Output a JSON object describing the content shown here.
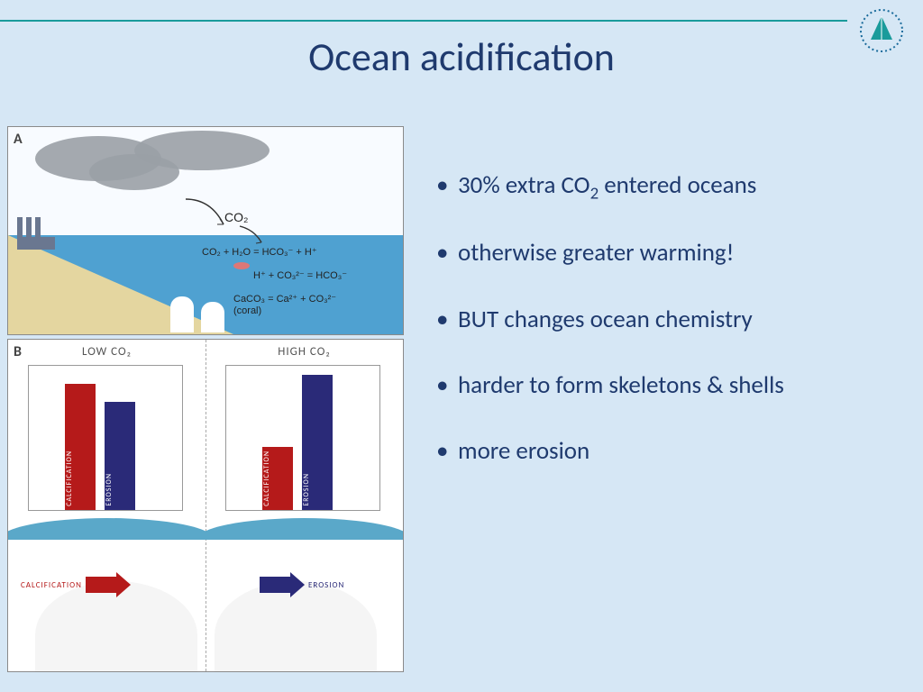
{
  "title": "Ocean acidification",
  "logo": {
    "ring_color": "#1a6b9b",
    "sail_color": "#1a9b9b"
  },
  "colors": {
    "background": "#d6e7f5",
    "title_text": "#1f3a6e",
    "bullet_text": "#1f3a6e",
    "top_rule": "#1a9b9b",
    "panel_border": "#8a8a8a"
  },
  "bullets": [
    "30% extra CO<sub>2</sub> entered oceans",
    "otherwise greater warming!",
    "BUT changes ocean chemistry",
    "harder to form skeletons & shells",
    "more erosion"
  ],
  "bullet_fontsize_pt": 27,
  "panel_a": {
    "label": "A",
    "sky_color": "#f8fbff",
    "ocean_color": "#4fa1d1",
    "sand_color": "#e4d6a0",
    "smoke_color": "#9aa0a6",
    "factory_color": "#6a7790",
    "chem_labels": [
      "CO₂",
      "CO₂ + H₂O = HCO₃⁻ + H⁺",
      "H⁺ + CO₃²⁻ = HCO₃⁻",
      "CaCO₃ = Ca²⁺ + CO₃²⁻",
      "(coral)"
    ]
  },
  "panel_b": {
    "label": "B",
    "calcification_color": "#b51a1a",
    "erosion_color": "#2a2a78",
    "chart_axis_color": "#999999",
    "low": {
      "title": "LOW CO₂",
      "calcification": 140,
      "erosion": 120,
      "ymax": 160
    },
    "high": {
      "title": "HIGH CO₂",
      "calcification": 70,
      "erosion": 150,
      "ymax": 160
    },
    "reef_labels": {
      "left": "CALCIFICATION",
      "right": "EROSION"
    },
    "wave_color": "#5aa8c9",
    "reef_color": "#f5f5f5"
  }
}
